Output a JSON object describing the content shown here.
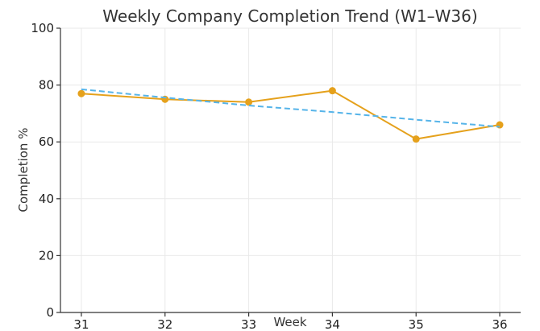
{
  "chart_data": {
    "type": "line",
    "title": "Weekly Company Completion Trend (W1–W36)",
    "xlabel": "Week",
    "ylabel": "Completion %",
    "x": [
      31,
      32,
      33,
      34,
      35,
      36
    ],
    "xticks": [
      "31",
      "32",
      "33",
      "34",
      "35",
      "36"
    ],
    "yticks": [
      "0",
      "20",
      "40",
      "60",
      "80",
      "100"
    ],
    "ytick_values": [
      0,
      20,
      40,
      60,
      80,
      100
    ],
    "ylim": [
      0,
      100
    ],
    "grid": true,
    "series": [
      {
        "values": [
          77,
          75,
          74,
          78,
          61,
          66
        ],
        "color": "#E5A11C",
        "style": "solid",
        "markers": true
      },
      {
        "values": [
          78.5,
          75.6,
          72.8,
          70.5,
          67.8,
          65.3
        ],
        "color": "#56B4E9",
        "style": "dashed",
        "markers": false
      }
    ]
  }
}
